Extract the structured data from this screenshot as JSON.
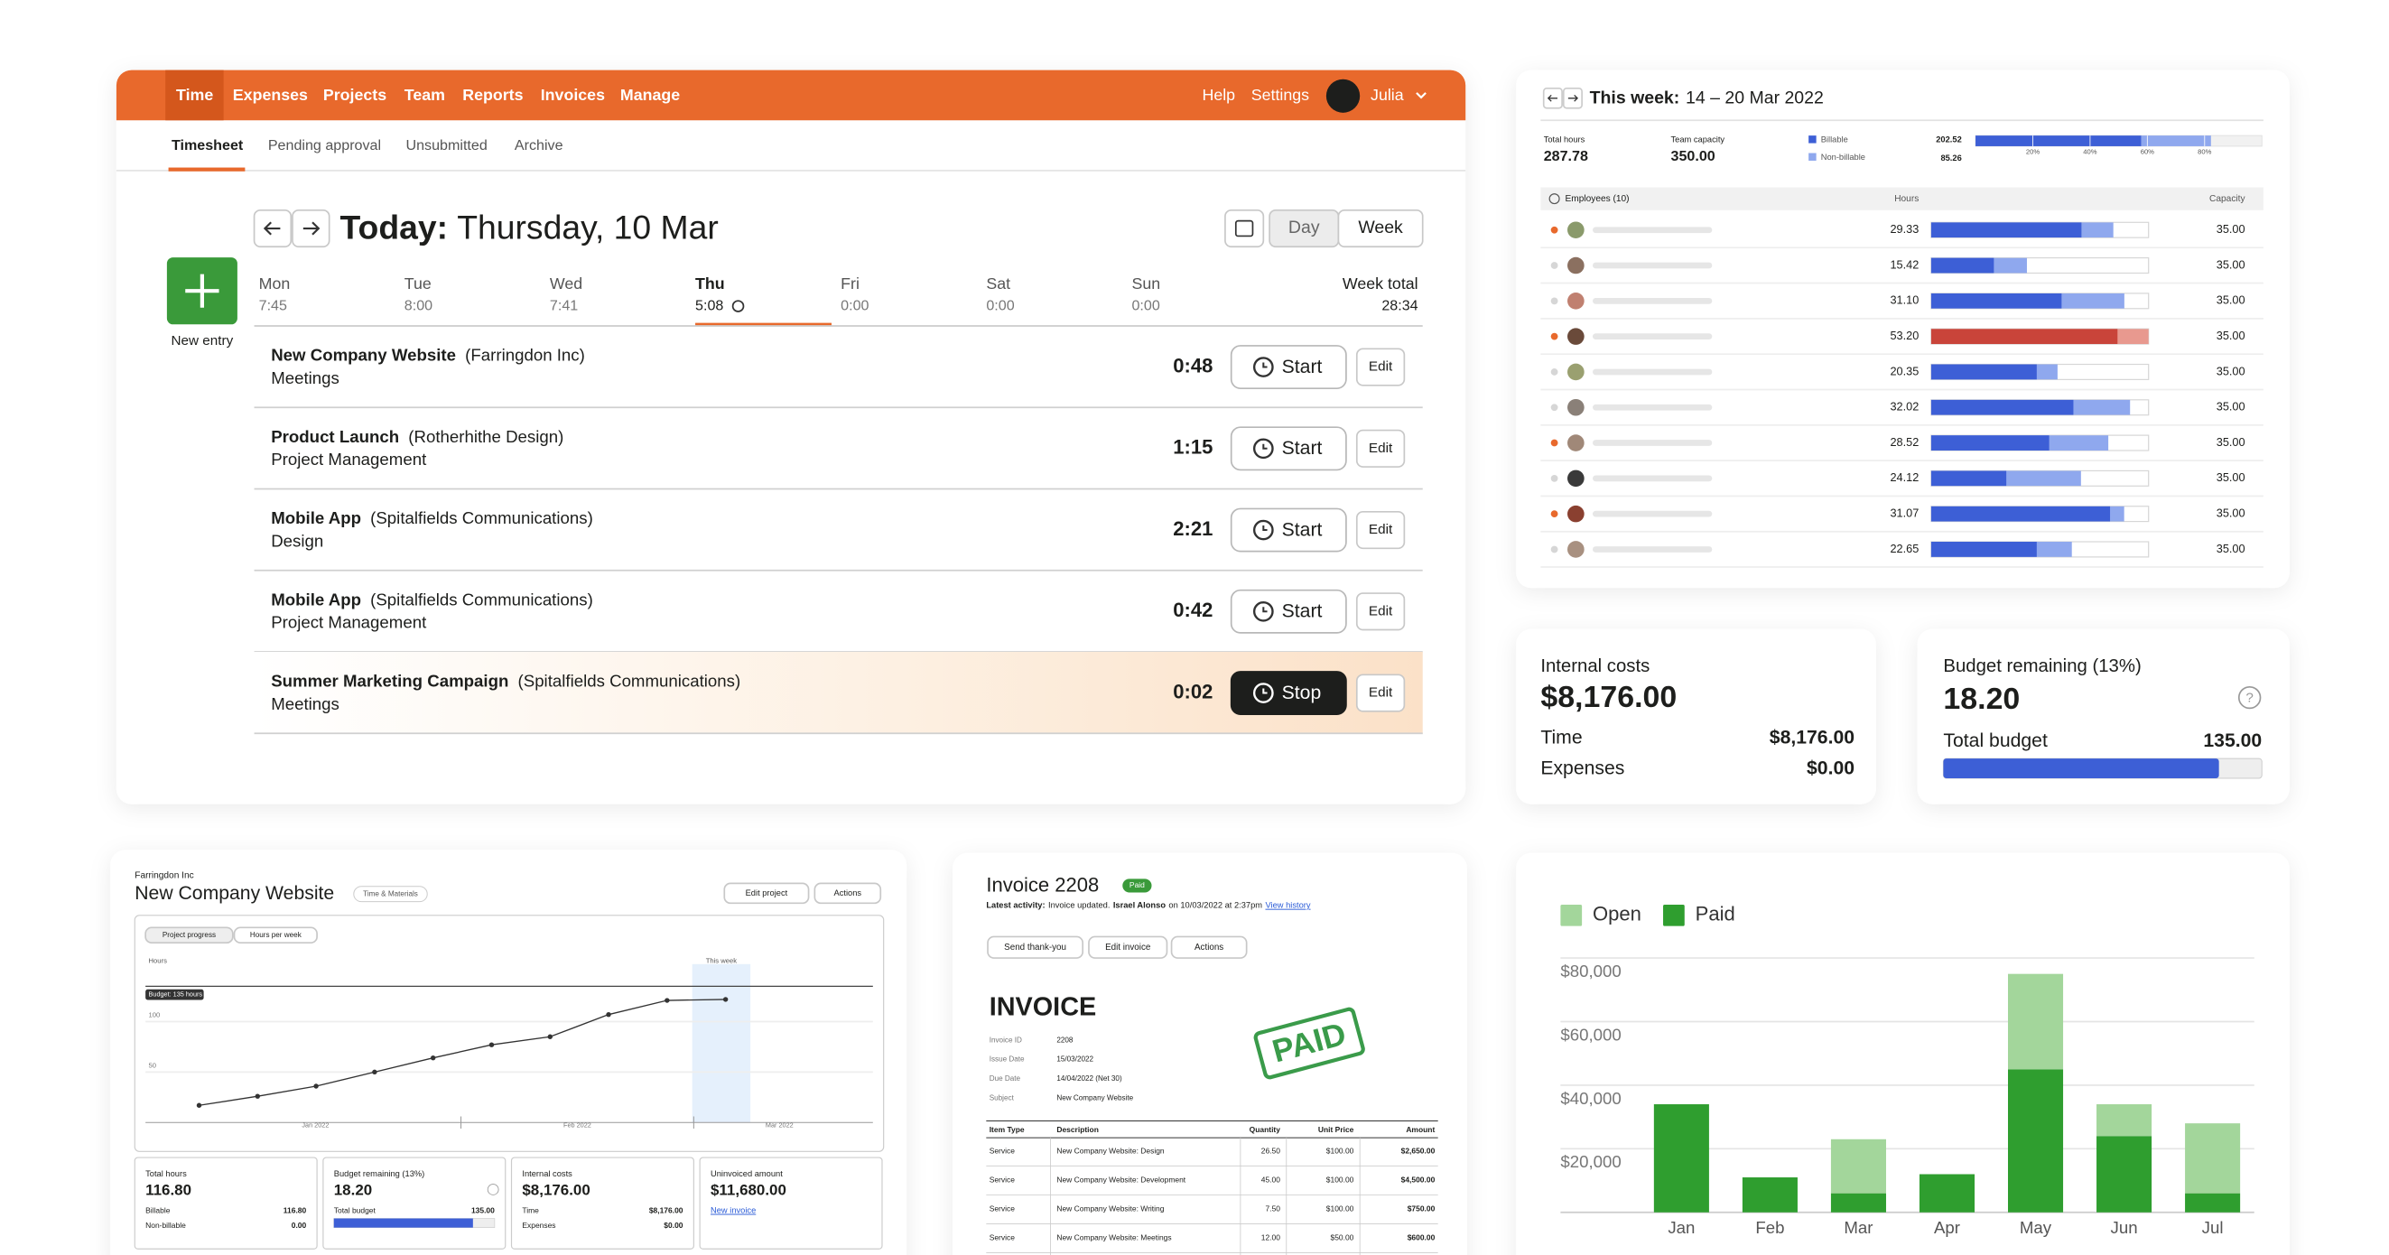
{
  "nav": {
    "items": [
      "Time",
      "Expenses",
      "Projects",
      "Team",
      "Reports",
      "Invoices",
      "Manage"
    ],
    "links": [
      "Help",
      "Settings"
    ],
    "user": "Julia"
  },
  "tabs": [
    "Timesheet",
    "Pending approval",
    "Unsubmitted",
    "Archive"
  ],
  "timesheet": {
    "today_label": "Today:",
    "date": "Thursday, 10 Mar",
    "views": [
      "Day",
      "Week"
    ],
    "new_entry": "New entry",
    "days": [
      {
        "name": "Mon",
        "total": "7:45"
      },
      {
        "name": "Tue",
        "total": "8:00"
      },
      {
        "name": "Wed",
        "total": "7:41"
      },
      {
        "name": "Thu",
        "total": "5:08"
      },
      {
        "name": "Fri",
        "total": "0:00"
      },
      {
        "name": "Sat",
        "total": "0:00"
      },
      {
        "name": "Sun",
        "total": "0:00"
      }
    ],
    "week_total_label": "Week total",
    "week_total": "28:34",
    "entries": [
      {
        "project": "New Company Website",
        "client": "(Farringdon Inc)",
        "task": "Meetings",
        "time": "0:48",
        "action": "Start",
        "edit": "Edit",
        "running": false
      },
      {
        "project": "Product Launch",
        "client": "(Rotherhithe Design)",
        "task": "Project Management",
        "time": "1:15",
        "action": "Start",
        "edit": "Edit",
        "running": false
      },
      {
        "project": "Mobile App",
        "client": "(Spitalfields Communications)",
        "task": "Design",
        "time": "2:21",
        "action": "Start",
        "edit": "Edit",
        "running": false
      },
      {
        "project": "Mobile App",
        "client": "(Spitalfields Communications)",
        "task": "Project Management",
        "time": "0:42",
        "action": "Start",
        "edit": "Edit",
        "running": false
      },
      {
        "project": "Summer Marketing Campaign",
        "client": "(Spitalfields Communications)",
        "task": "Meetings",
        "time": "0:02",
        "action": "Stop",
        "edit": "Edit",
        "running": true
      }
    ]
  },
  "capacity": {
    "title": "This week:",
    "range": "14 – 20 Mar 2022",
    "total_hours_label": "Total hours",
    "total_hours": "287.78",
    "team_capacity_label": "Team capacity",
    "team_capacity": "350.00",
    "legend": [
      {
        "name": "Billable",
        "color": "#3d5fd6"
      },
      {
        "name": "Non-billable",
        "color": "#8fa8ee"
      }
    ],
    "billable": "202.52",
    "non_billable": "85.26",
    "scale_ticks": [
      {
        "value": 20,
        "label": "20%"
      },
      {
        "value": 40,
        "label": "40%"
      },
      {
        "value": 60,
        "label": "60%"
      },
      {
        "value": 80,
        "label": "80%"
      }
    ],
    "columns": [
      "Employees (10)",
      "Hours",
      "Capacity"
    ],
    "employees": [
      {
        "hours": "29.33",
        "billable": 24.2,
        "capacity": "35.00",
        "flag": true
      },
      {
        "hours": "15.42",
        "billable": 10.1,
        "capacity": "35.00",
        "flag": false
      },
      {
        "hours": "31.10",
        "billable": 21.0,
        "capacity": "35.00",
        "flag": false
      },
      {
        "hours": "53.20",
        "billable": 30.0,
        "capacity": "35.00",
        "flag": true
      },
      {
        "hours": "20.35",
        "billable": 17.0,
        "capacity": "35.00",
        "flag": false
      },
      {
        "hours": "32.02",
        "billable": 22.9,
        "capacity": "35.00",
        "flag": false
      },
      {
        "hours": "28.52",
        "billable": 19.0,
        "capacity": "35.00",
        "flag": true
      },
      {
        "hours": "24.12",
        "billable": 12.1,
        "capacity": "35.00",
        "flag": false
      },
      {
        "hours": "31.07",
        "billable": 28.8,
        "capacity": "35.00",
        "flag": true
      },
      {
        "hours": "22.65",
        "billable": 17.0,
        "capacity": "35.00",
        "flag": false
      }
    ]
  },
  "costs": {
    "label": "Internal costs",
    "value": "$8,176.00",
    "rows": [
      [
        "Time",
        "$8,176.00"
      ],
      [
        "Expenses",
        "$0.00"
      ]
    ]
  },
  "budget": {
    "label": "Budget remaining (13%)",
    "value": "18.20",
    "total_label": "Total budget",
    "total": "135.00"
  },
  "project": {
    "client": "Farringdon Inc",
    "name": "New Company Website",
    "billing": "Time & Materials",
    "buttons": [
      "Edit project",
      "Actions"
    ],
    "chart": {
      "tabs": [
        "Project progress",
        "Hours per week"
      ],
      "y_label": "Hours",
      "budget_label": "Budget: 135 hours",
      "budget": 135,
      "this_week_label": "This week",
      "x_labels": [
        "Jan 2022",
        "Feb 2022",
        "Mar 2022"
      ],
      "values": [
        17,
        26,
        36,
        50,
        64,
        77,
        85,
        107,
        121,
        122
      ],
      "ylim": [
        0,
        160
      ],
      "yticks": [
        50,
        100
      ]
    },
    "stats": [
      {
        "label": "Total hours",
        "value": "116.80",
        "rows": [
          [
            "Billable",
            "116.80"
          ],
          [
            "Non-billable",
            "0.00"
          ]
        ]
      },
      {
        "label": "Budget remaining (13%)",
        "value": "18.20",
        "rows": [
          [
            "Total budget",
            "135.00"
          ]
        ]
      },
      {
        "label": "Internal costs",
        "value": "$8,176.00",
        "rows": [
          [
            "Time",
            "$8,176.00"
          ],
          [
            "Expenses",
            "$0.00"
          ]
        ]
      },
      {
        "label": "Uninvoiced amount",
        "value": "$11,680.00",
        "link": "New invoice"
      }
    ]
  },
  "invoice": {
    "title": "Invoice 2208",
    "status": "Paid",
    "activity": {
      "label": "Latest activity:",
      "text": "Invoice updated.",
      "user": "Israel Alonso",
      "when": "on 10/03/2022 at 2:37pm",
      "link": "View history"
    },
    "buttons": [
      "Send thank-you",
      "Edit invoice",
      "Actions"
    ],
    "heading": "INVOICE",
    "meta": [
      [
        "Invoice ID",
        "2208"
      ],
      [
        "Issue Date",
        "15/03/2022"
      ],
      [
        "Due Date",
        "14/04/2022 (Net 30)"
      ],
      [
        "Subject",
        "New Company Website"
      ]
    ],
    "stamp": "PAID",
    "columns": [
      "Item Type",
      "Description",
      "Quantity",
      "Unit Price",
      "Amount"
    ],
    "rows": [
      [
        "Service",
        "New Company Website: Design",
        "26.50",
        "$100.00",
        "$2,650.00"
      ],
      [
        "Service",
        "New Company Website: Development",
        "45.00",
        "$100.00",
        "$4,500.00"
      ],
      [
        "Service",
        "New Company Website: Writing",
        "7.50",
        "$100.00",
        "$750.00"
      ],
      [
        "Service",
        "New Company Website: Meetings",
        "12.00",
        "$50.00",
        "$600.00"
      ]
    ]
  },
  "revenue_chart": {
    "type": "bar",
    "stacked": true,
    "categories": [
      "Jan",
      "Feb",
      "Mar",
      "Apr",
      "May",
      "Jun",
      "Jul"
    ],
    "series": [
      {
        "name": "Open",
        "color": "#a3d69b",
        "values": [
          0,
          0,
          17000,
          0,
          30000,
          10000,
          22000
        ]
      },
      {
        "name": "Paid",
        "color": "#2f9e2f",
        "values": [
          34000,
          11000,
          6000,
          12000,
          45000,
          24000,
          6000
        ]
      }
    ],
    "ylim": [
      0,
      80000
    ],
    "yticks": [
      {
        "value": 20000,
        "label": "$20,000"
      },
      {
        "value": 40000,
        "label": "$40,000"
      },
      {
        "value": 60000,
        "label": "$60,000"
      },
      {
        "value": 80000,
        "label": "$80,000"
      }
    ],
    "grid": true,
    "legend": "top-left"
  }
}
